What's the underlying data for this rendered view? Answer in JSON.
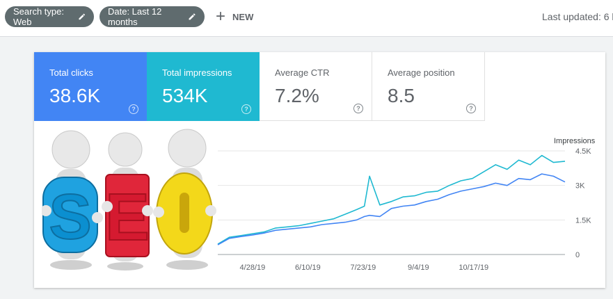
{
  "filters": {
    "search_type": "Search type: Web",
    "date": "Date: Last 12 months",
    "new_label": "NEW"
  },
  "last_updated": "Last updated: 6 h",
  "metrics": [
    {
      "label": "Total clicks",
      "value": "38.6K",
      "color": "#4285f4"
    },
    {
      "label": "Total impressions",
      "value": "534K",
      "color": "#1fb9d1"
    },
    {
      "label": "Average CTR",
      "value": "7.2%"
    },
    {
      "label": "Average position",
      "value": "8.5"
    }
  ],
  "seo_letters": [
    "S",
    "E",
    "O"
  ],
  "chart_data": {
    "type": "line",
    "y_axis_label": "Impressions",
    "y_ticks": [
      "4.5K",
      "3K",
      "1.5K",
      "0"
    ],
    "x_ticks": [
      "4/28/19",
      "6/10/19",
      "7/23/19",
      "9/4/19",
      "10/17/19"
    ],
    "ylim": [
      0,
      4500
    ],
    "x_range_days": [
      0,
      270
    ],
    "x_tick_days": [
      27,
      70,
      113,
      156,
      199
    ],
    "series": [
      {
        "color": "#1fb9d1",
        "x": [
          0,
          9,
          18,
          27,
          36,
          45,
          54,
          63,
          72,
          81,
          90,
          99,
          108,
          114,
          118,
          126,
          135,
          144,
          153,
          162,
          171,
          180,
          189,
          198,
          207,
          216,
          225,
          234,
          243,
          252,
          261,
          270
        ],
        "values": [
          450,
          750,
          820,
          900,
          980,
          1150,
          1200,
          1250,
          1350,
          1450,
          1550,
          1750,
          1950,
          2100,
          3400,
          2150,
          2300,
          2500,
          2550,
          2700,
          2750,
          3000,
          3200,
          3300,
          3600,
          3900,
          3700,
          4100,
          3900,
          4300,
          4000,
          4050
        ]
      },
      {
        "color": "#4285f4",
        "x": [
          0,
          9,
          18,
          27,
          36,
          45,
          54,
          63,
          72,
          81,
          90,
          99,
          108,
          114,
          118,
          126,
          135,
          144,
          153,
          162,
          171,
          180,
          189,
          198,
          207,
          216,
          225,
          234,
          243,
          252,
          261,
          270
        ],
        "values": [
          420,
          700,
          780,
          850,
          930,
          1050,
          1100,
          1150,
          1200,
          1300,
          1350,
          1400,
          1500,
          1650,
          1700,
          1650,
          2000,
          2100,
          2150,
          2300,
          2400,
          2600,
          2750,
          2850,
          2950,
          3100,
          3000,
          3300,
          3250,
          3500,
          3400,
          3150
        ]
      }
    ]
  }
}
